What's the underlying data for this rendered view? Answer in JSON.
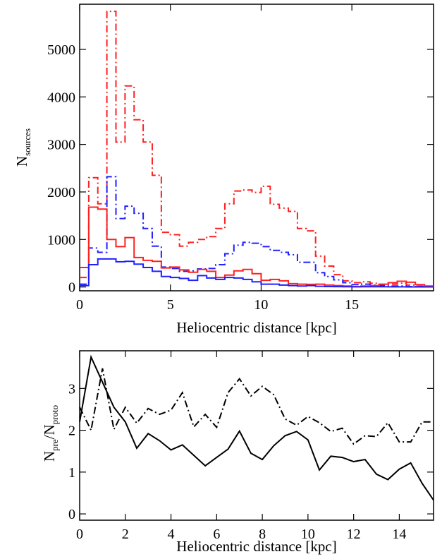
{
  "chart_data": [
    {
      "type": "line",
      "title": "",
      "xlabel": "Heliocentric distance [kpc]",
      "ylabel": "N_sources",
      "ylabel_main": "N",
      "ylabel_sub": "sources",
      "xlim": [
        0,
        19.5
      ],
      "ylim": [
        -80,
        5950
      ],
      "xticks": [
        0,
        5,
        10,
        15
      ],
      "yticks": [
        0,
        1000,
        2000,
        3000,
        4000,
        5000
      ],
      "x_edges": [
        0,
        0.5,
        1,
        1.5,
        2,
        2.5,
        3,
        3.5,
        4,
        4.5,
        5,
        5.5,
        6,
        6.5,
        7,
        7.5,
        8,
        8.5,
        9,
        9.5,
        10,
        10.5,
        11,
        11.5,
        12,
        12.5,
        13,
        13.5,
        14,
        14.5,
        15,
        15.5,
        16,
        16.5,
        17,
        17.5,
        18,
        18.5,
        19,
        19.5
      ],
      "series": [
        {
          "color": "#ff2020",
          "dash": "dashdot",
          "values": [
            200,
            2300,
            1750,
            5800,
            3050,
            4230,
            3520,
            3050,
            2350,
            1150,
            1100,
            860,
            940,
            1000,
            1060,
            1230,
            1750,
            2020,
            2040,
            1990,
            2120,
            1740,
            1660,
            1590,
            1230,
            1180,
            650,
            440,
            260,
            130,
            90,
            110,
            80,
            50,
            60,
            80,
            40,
            20,
            10
          ]
        },
        {
          "color": "#2020ff",
          "dash": "dashdot",
          "values": [
            60,
            820,
            730,
            2320,
            1440,
            1700,
            1550,
            1230,
            860,
            420,
            390,
            330,
            340,
            380,
            390,
            470,
            700,
            880,
            940,
            920,
            850,
            770,
            730,
            680,
            520,
            520,
            300,
            220,
            150,
            90,
            50,
            60,
            40,
            30,
            20,
            20,
            10,
            10,
            5
          ]
        },
        {
          "color": "#ff2020",
          "dash": "solid",
          "values": [
            410,
            1680,
            1640,
            1000,
            850,
            1040,
            620,
            560,
            540,
            400,
            420,
            360,
            310,
            370,
            330,
            200,
            250,
            340,
            370,
            280,
            140,
            160,
            130,
            70,
            60,
            55,
            60,
            40,
            30,
            20,
            10,
            20,
            30,
            60,
            90,
            120,
            100,
            50,
            20
          ]
        },
        {
          "color": "#2020ff",
          "dash": "solid",
          "values": [
            30,
            470,
            590,
            590,
            530,
            540,
            480,
            410,
            330,
            220,
            200,
            180,
            140,
            240,
            190,
            160,
            200,
            190,
            160,
            110,
            60,
            60,
            40,
            30,
            20,
            30,
            15,
            10,
            8,
            5,
            3,
            5,
            5,
            5,
            3,
            3,
            2,
            2,
            1
          ]
        }
      ]
    },
    {
      "type": "line",
      "title": "",
      "xlabel": "Heliocentric distance [kpc]",
      "ylabel": "N_pre/N_proto",
      "ylabel_parts": [
        "N",
        "pre",
        "/N",
        "proto"
      ],
      "xlim": [
        0,
        15.5
      ],
      "ylim": [
        -0.15,
        3.9
      ],
      "xticks": [
        0,
        2,
        4,
        6,
        8,
        10,
        12,
        14
      ],
      "yticks": [
        0,
        1,
        2,
        3
      ],
      "x": [
        0,
        0.5,
        1,
        1.5,
        2,
        2.5,
        3,
        3.5,
        4,
        4.5,
        5,
        5.5,
        6,
        6.5,
        7,
        7.5,
        8,
        8.5,
        9,
        9.5,
        10,
        10.5,
        11,
        11.5,
        12,
        12.5,
        13,
        13.5,
        14,
        14.5,
        15,
        15.5
      ],
      "series": [
        {
          "color": "#000000",
          "dash": "solid",
          "values": [
            2.2,
            3.75,
            3.15,
            2.55,
            2.2,
            1.57,
            1.92,
            1.75,
            1.53,
            1.65,
            1.4,
            1.15,
            1.35,
            1.55,
            1.98,
            1.45,
            1.3,
            1.63,
            1.87,
            1.97,
            1.77,
            1.05,
            1.38,
            1.35,
            1.25,
            1.3,
            0.95,
            0.82,
            1.07,
            1.22,
            0.73,
            0.33
          ]
        },
        {
          "color": "#000000",
          "dash": "dashdot",
          "values": [
            2.55,
            2.0,
            3.48,
            2.02,
            2.55,
            2.17,
            2.52,
            2.38,
            2.48,
            2.9,
            2.08,
            2.38,
            2.07,
            2.9,
            3.23,
            2.82,
            3.05,
            2.85,
            2.27,
            2.12,
            2.33,
            2.18,
            1.97,
            2.05,
            1.67,
            1.87,
            1.85,
            2.18,
            1.72,
            1.72,
            2.2,
            2.2
          ]
        }
      ]
    }
  ]
}
